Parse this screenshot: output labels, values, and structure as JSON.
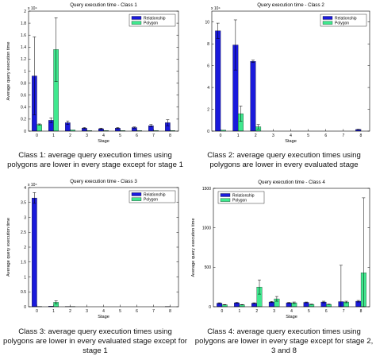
{
  "colors": {
    "relationship": "#1a1adb",
    "polygon": "#3fe88e",
    "error": "#000000"
  },
  "charts": [
    {
      "type": "bar",
      "title": "Query execution time - Class 1",
      "xlabel": "Stage",
      "ylabel": "Average query execution time",
      "exponent": "x 10⁴",
      "categories": [
        "0",
        "1",
        "2",
        "3",
        "4",
        "5",
        "6",
        "7",
        "8"
      ],
      "ylim": [
        0,
        2
      ],
      "yticks": [
        0,
        0.2,
        0.4,
        0.6,
        0.8,
        1,
        1.2,
        1.4,
        1.6,
        1.8,
        2
      ],
      "ytick_labels": [
        "0",
        "0.2",
        "0.4",
        "0.6",
        "0.8",
        "1",
        "1.2",
        "1.4",
        "1.6",
        "1.8",
        "2"
      ],
      "legend": [
        "Relationship",
        "Polygon"
      ],
      "legend_position": "top-right",
      "series": [
        {
          "name": "Relationship",
          "values": [
            0.92,
            0.18,
            0.14,
            0.05,
            0.04,
            0.05,
            0.06,
            0.09,
            0.14
          ],
          "errors": [
            0.65,
            0.04,
            0.03,
            0.01,
            0.01,
            0.01,
            0.01,
            0.02,
            0.05
          ]
        },
        {
          "name": "Polygon",
          "values": [
            0.11,
            1.36,
            0.02,
            0.01,
            0.01,
            0.01,
            0.01,
            0.01,
            0.01
          ],
          "errors": [
            0.01,
            0.53,
            0.0,
            0.0,
            0.0,
            0.0,
            0.0,
            0.0,
            0.0
          ]
        }
      ]
    },
    {
      "type": "bar",
      "title": "Query execution time - Class 2",
      "xlabel": "Stage",
      "ylabel": "",
      "exponent": "x 10⁴",
      "categories": [
        "0",
        "1",
        "2",
        "3",
        "4",
        "5",
        "6",
        "7",
        "8"
      ],
      "ylim": [
        0,
        11
      ],
      "yticks": [
        0,
        2,
        4,
        6,
        8,
        10
      ],
      "ytick_labels": [
        "0",
        "2",
        "4",
        "6",
        "8",
        "10"
      ],
      "legend": [
        "Relationship",
        "Polygon"
      ],
      "legend_position": "top-right",
      "series": [
        {
          "name": "Relationship",
          "values": [
            9.2,
            7.9,
            6.4,
            0,
            0,
            0,
            0,
            0,
            0.15
          ],
          "errors": [
            0.7,
            2.3,
            0.1,
            0,
            0,
            0,
            0,
            0,
            0.02
          ]
        },
        {
          "name": "Polygon",
          "values": [
            0.1,
            1.6,
            0.4,
            0,
            0,
            0,
            0,
            0,
            0
          ],
          "errors": [
            0.0,
            0.7,
            0.2,
            0,
            0,
            0,
            0,
            0,
            0
          ]
        }
      ]
    },
    {
      "type": "bar",
      "title": "Query execution time - Class 3",
      "xlabel": "Stage",
      "ylabel": "Average query execution time",
      "exponent": "x 10⁴",
      "categories": [
        "0",
        "1",
        "2",
        "3",
        "4",
        "5",
        "6",
        "7",
        "8"
      ],
      "ylim": [
        0,
        4
      ],
      "yticks": [
        0,
        0.5,
        1,
        1.5,
        2,
        2.5,
        3,
        3.5,
        4
      ],
      "ytick_labels": [
        "0",
        "0.5",
        "1",
        "1.5",
        "2",
        "2.5",
        "3",
        "3.5",
        "4"
      ],
      "legend": [
        "Relationship",
        "Polygon"
      ],
      "legend_position": "top-right",
      "series": [
        {
          "name": "Relationship",
          "values": [
            3.65,
            0.02,
            0.01,
            0,
            0,
            0,
            0,
            0,
            0.01
          ],
          "errors": [
            0.18,
            0.0,
            0.0,
            0,
            0,
            0,
            0,
            0,
            0.0
          ]
        },
        {
          "name": "Polygon",
          "values": [
            0.01,
            0.15,
            0.01,
            0,
            0,
            0,
            0,
            0,
            0
          ],
          "errors": [
            0.0,
            0.05,
            0.0,
            0,
            0,
            0,
            0,
            0,
            0
          ]
        }
      ]
    },
    {
      "type": "bar",
      "title": "Query execution time - Class 4",
      "xlabel": "Stage",
      "ylabel": "Average query execution time",
      "exponent": "",
      "categories": [
        "0",
        "1",
        "2",
        "3",
        "4",
        "5",
        "6",
        "7",
        "8"
      ],
      "ylim": [
        0,
        1500
      ],
      "yticks": [
        0,
        500,
        1000,
        1500
      ],
      "ytick_labels": [
        "0",
        "500",
        "1000",
        "1500"
      ],
      "legend": [
        "Relationship",
        "Polygon"
      ],
      "legend_position": "top-left",
      "series": [
        {
          "name": "Relationship",
          "values": [
            45,
            50,
            45,
            60,
            50,
            55,
            60,
            65,
            70
          ],
          "errors": [
            5,
            5,
            5,
            8,
            5,
            5,
            10,
            460,
            10
          ]
        },
        {
          "name": "Polygon",
          "values": [
            25,
            25,
            250,
            100,
            50,
            30,
            30,
            60,
            430
          ],
          "errors": [
            3,
            3,
            90,
            30,
            10,
            3,
            3,
            10,
            950
          ]
        }
      ]
    }
  ],
  "captions": [
    "Class 1: average query execution times using polygons are lower in every stage except for stage 1",
    "Class 2: average query execution times using polygons are lower in every evaluated stage",
    "Class 3: average query execution times using polygons are lower in every evaluated stage except for stage 1",
    "Class 4: average query execution times using polygons are lower in every stage except for stage 2, 3 and 8"
  ]
}
